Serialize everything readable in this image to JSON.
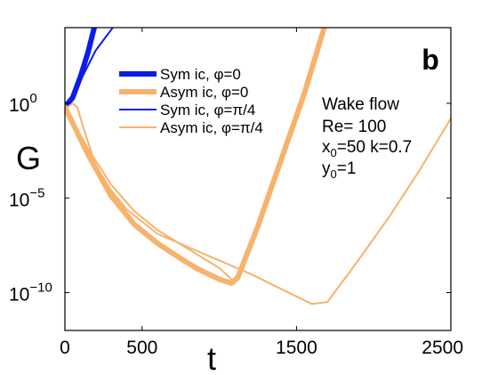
{
  "chart_data": {
    "type": "line",
    "title": "",
    "panel_label": "b",
    "xlabel": "t",
    "ylabel": "G",
    "xlim": [
      0,
      2500
    ],
    "ylim_log10": [
      -12,
      4
    ],
    "y_scale": "log",
    "x_ticks": [
      {
        "value": 0,
        "label": "0"
      },
      {
        "value": 500,
        "label": "500"
      },
      {
        "value": 1500,
        "label": "1500"
      },
      {
        "value": 2500,
        "label": "2500"
      }
    ],
    "y_ticks": [
      {
        "exp": 0,
        "base": "10",
        "sup": "0"
      },
      {
        "exp": -5,
        "base": "10",
        "sup": "−5"
      },
      {
        "exp": -10,
        "base": "10",
        "sup": "−10"
      }
    ],
    "annotation": {
      "line1": "Wake flow",
      "line2": "Re= 100",
      "line3a": "x",
      "line3sub": "0",
      "line3b": "=50 k=0.7",
      "line4a": "y",
      "line4sub": "0",
      "line4b": "=1"
    },
    "legend": {
      "placement": "upper-center",
      "entries": [
        {
          "label": "Sym ic, φ=0",
          "color": "#0a1ee6",
          "width": 6
        },
        {
          "label": "Asym ic, φ=0",
          "color": "#f7b26c",
          "width": 6
        },
        {
          "label": "Sym ic, φ=π/4",
          "color": "#0a1ee6",
          "width": 2
        },
        {
          "label": "Asym ic, φ=π/4",
          "color": "#f7b26c",
          "width": 2
        }
      ]
    },
    "series": [
      {
        "name": "Sym ic, φ=0",
        "color": "#0a1ee6",
        "width": 6,
        "points": [
          [
            0,
            -0.2
          ],
          [
            50,
            0.3
          ],
          [
            100,
            1.4
          ],
          [
            150,
            2.7
          ],
          [
            190,
            4.0
          ]
        ]
      },
      {
        "name": "Sym ic, φ=π/4",
        "color": "#0a1ee6",
        "width": 2,
        "points": [
          [
            0,
            -0.3
          ],
          [
            50,
            0.3
          ],
          [
            100,
            1.2
          ],
          [
            200,
            2.8
          ],
          [
            310,
            4.0
          ]
        ]
      },
      {
        "name": "Asym ic, φ=0",
        "color": "#f7b26c",
        "width": 6,
        "points": [
          [
            0,
            -0.2
          ],
          [
            150,
            -2.7
          ],
          [
            300,
            -4.9
          ],
          [
            450,
            -6.4
          ],
          [
            600,
            -7.4
          ],
          [
            750,
            -8.2
          ],
          [
            850,
            -8.7
          ],
          [
            1000,
            -9.3
          ],
          [
            1080,
            -9.5
          ],
          [
            1120,
            -9.2
          ],
          [
            1250,
            -6.5
          ],
          [
            1400,
            -3.0
          ],
          [
            1550,
            0.5
          ],
          [
            1680,
            4.0
          ]
        ]
      },
      {
        "name": "Asym ic, φ=π/4",
        "color": "#f7b26c",
        "width": 2,
        "points": [
          [
            0,
            -0.3
          ],
          [
            50,
            0.0
          ],
          [
            80,
            -0.2
          ],
          [
            120,
            -1.3
          ],
          [
            200,
            -3.3
          ],
          [
            300,
            -4.6
          ],
          [
            400,
            -5.6
          ],
          [
            600,
            -6.9
          ],
          [
            800,
            -7.6
          ],
          [
            1000,
            -8.3
          ],
          [
            1200,
            -9.0
          ],
          [
            1400,
            -9.8
          ],
          [
            1600,
            -10.6
          ],
          [
            1700,
            -10.5
          ],
          [
            1900,
            -8.3
          ],
          [
            2100,
            -6.0
          ],
          [
            2300,
            -3.5
          ],
          [
            2500,
            -0.8
          ]
        ]
      },
      {
        "name": "Asym ic, φ=0",
        "color": "#f7b26c",
        "width": 2,
        "points": [
          [
            0,
            -0.2
          ],
          [
            150,
            -2.4
          ],
          [
            300,
            -4.3
          ],
          [
            450,
            -5.7
          ],
          [
            600,
            -6.7
          ],
          [
            800,
            -7.7
          ],
          [
            1000,
            -8.7
          ],
          [
            1080,
            -9.3
          ]
        ]
      }
    ]
  }
}
